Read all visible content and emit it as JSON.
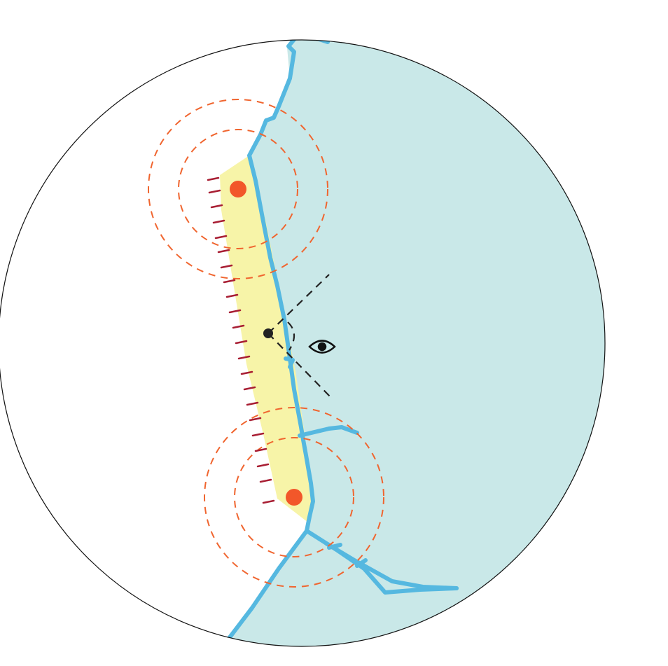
{
  "map": {
    "colors": {
      "background": "#ffffff",
      "circle_border": "#111111",
      "water": "#c9e8e8",
      "coastline": "#55b8e0",
      "strip_fill": "#f7f4a8",
      "buffer_ring": "#f0652f",
      "marker": "#f2572a",
      "hatch": "#a81e33",
      "view_lines": "#222222",
      "eye_icon": "#111111"
    },
    "icons": {
      "viewpoint": "eye-icon"
    },
    "markers_count": 2,
    "buffer_rings_per_marker": 2
  }
}
